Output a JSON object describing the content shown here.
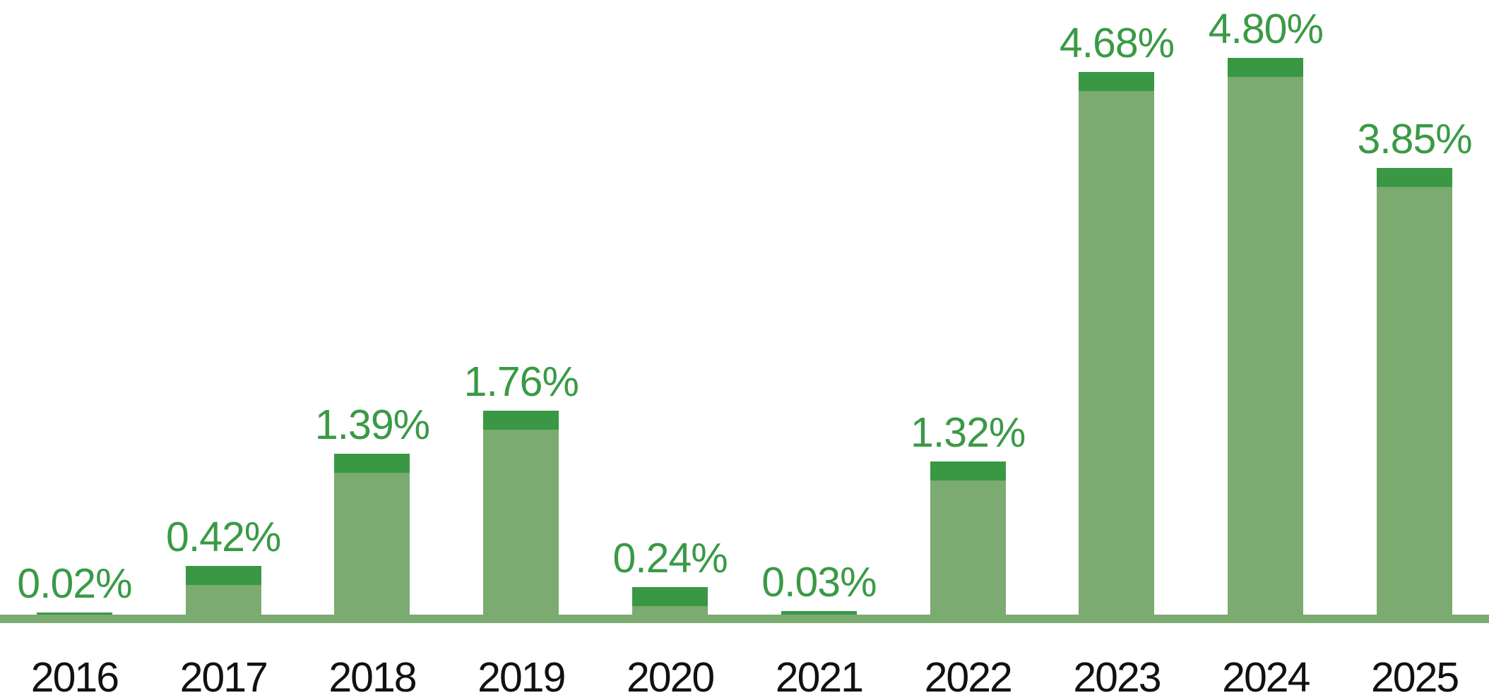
{
  "chart_data": {
    "type": "bar",
    "title": "",
    "xlabel": "",
    "ylabel": "",
    "categories": [
      "2016",
      "2017",
      "2018",
      "2019",
      "2020",
      "2021",
      "2022",
      "2023",
      "2024",
      "2025"
    ],
    "values": [
      0.02,
      0.42,
      1.39,
      1.76,
      0.24,
      0.03,
      1.32,
      4.68,
      4.8,
      3.85
    ],
    "value_labels": [
      "0.02%",
      "0.42%",
      "1.39%",
      "1.76%",
      "0.24%",
      "0.03%",
      "1.32%",
      "4.68%",
      "4.80%",
      "3.85%"
    ],
    "ylim": [
      0,
      5.0
    ],
    "grid": false,
    "legend": false,
    "style": {
      "bar_body_color": "#7bab71",
      "bar_cap_color": "#3a9845",
      "value_label_color": "#3a9a45",
      "axis_line_color": "#7bab71",
      "year_label_color": "#111111"
    }
  }
}
